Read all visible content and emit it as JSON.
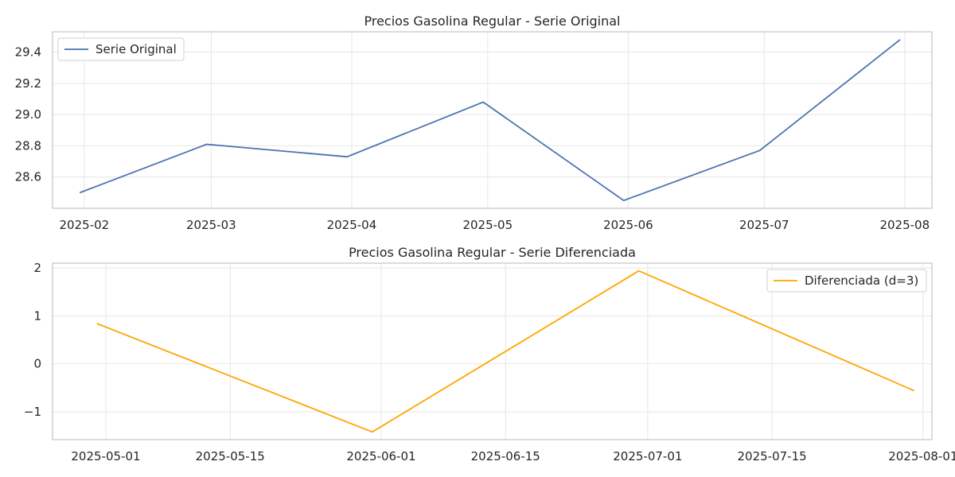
{
  "chart_data": [
    {
      "type": "line",
      "title": "Precios Gasolina Regular - Serie Original",
      "xlabel": "",
      "ylabel": "",
      "x_type": "date",
      "x": [
        "2025-01-31",
        "2025-02-28",
        "2025-03-31",
        "2025-04-30",
        "2025-05-31",
        "2025-06-30",
        "2025-07-31"
      ],
      "series": [
        {
          "name": "Serie Original",
          "values": [
            28.5,
            28.81,
            28.73,
            29.08,
            28.45,
            28.77,
            29.48
          ],
          "color": "#4c72b0"
        }
      ],
      "xlim": [
        "2025-01-25",
        "2025-08-07"
      ],
      "ylim": [
        28.4,
        29.53
      ],
      "x_ticks": [
        "2025-02-01",
        "2025-03-01",
        "2025-04-01",
        "2025-05-01",
        "2025-06-01",
        "2025-07-01",
        "2025-08-01"
      ],
      "x_tick_labels": [
        "2025-02",
        "2025-03",
        "2025-04",
        "2025-05",
        "2025-06",
        "2025-07",
        "2025-08"
      ],
      "y_ticks": [
        28.6,
        28.8,
        29.0,
        29.2,
        29.4
      ],
      "y_tick_labels": [
        "28.6",
        "28.8",
        "29.0",
        "29.2",
        "29.4"
      ],
      "grid": true,
      "legend_position": "top-left"
    },
    {
      "type": "line",
      "title": "Precios Gasolina Regular - Serie Diferenciada",
      "xlabel": "",
      "ylabel": "",
      "x_type": "date",
      "x": [
        "2025-04-30",
        "2025-05-31",
        "2025-06-30",
        "2025-07-31"
      ],
      "series": [
        {
          "name": "Diferenciada (d=3)",
          "values": [
            0.84,
            -1.42,
            1.94,
            -0.56
          ],
          "color": "#ffa500"
        }
      ],
      "xlim": [
        "2025-04-25",
        "2025-08-02"
      ],
      "ylim": [
        -1.58,
        2.1
      ],
      "x_ticks": [
        "2025-05-01",
        "2025-05-15",
        "2025-06-01",
        "2025-06-15",
        "2025-07-01",
        "2025-07-15",
        "2025-08-01"
      ],
      "x_tick_labels": [
        "2025-05-01",
        "2025-05-15",
        "2025-06-01",
        "2025-06-15",
        "2025-07-01",
        "2025-07-15",
        "2025-08-01"
      ],
      "y_ticks": [
        -1,
        0,
        1,
        2
      ],
      "y_tick_labels": [
        "−1",
        "0",
        "1",
        "2"
      ],
      "grid": true,
      "legend_position": "top-right"
    }
  ]
}
